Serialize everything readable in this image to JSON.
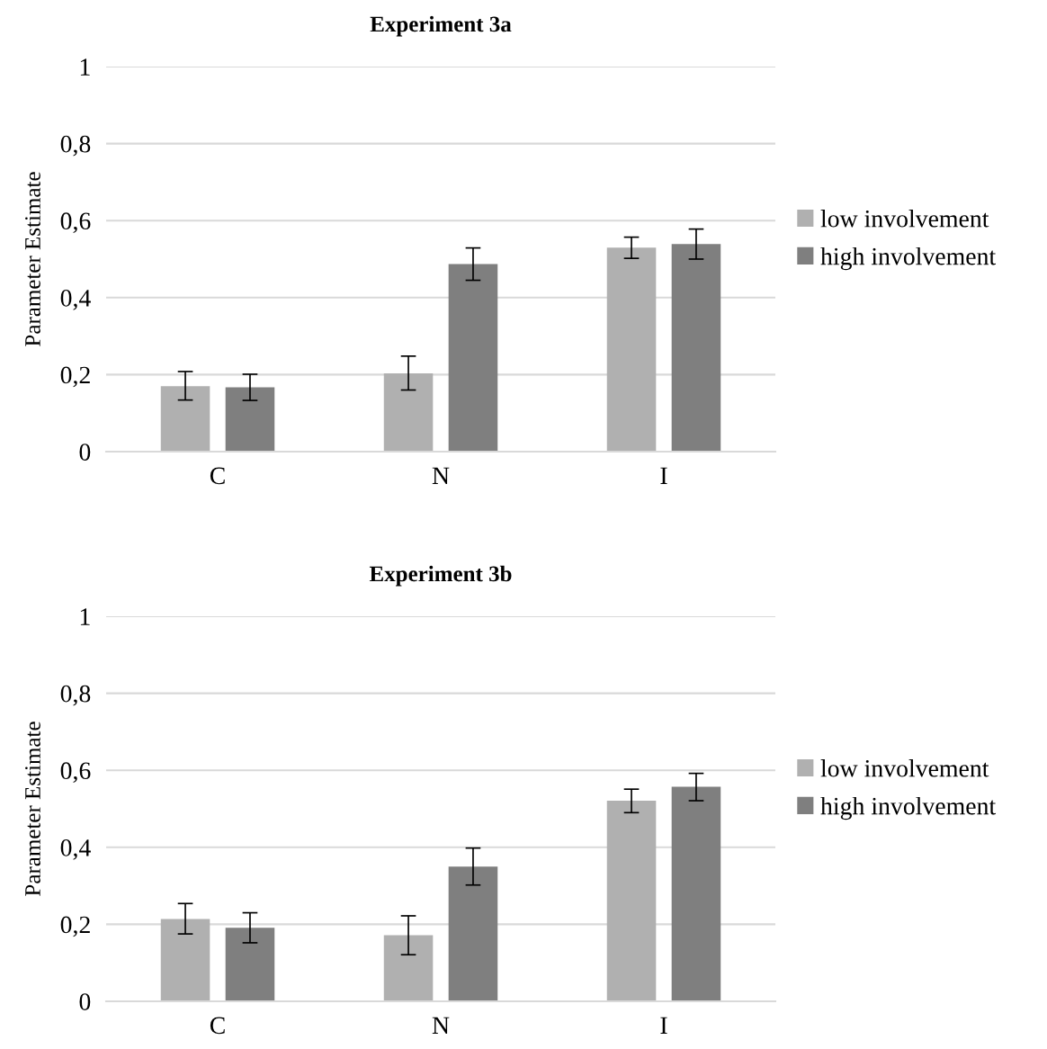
{
  "chart_data": [
    {
      "type": "bar",
      "title": "Experiment 3a",
      "ylabel": "Parameter Estimate",
      "categories": [
        "C",
        "N",
        "I"
      ],
      "series": [
        {
          "name": "low involvement",
          "color": "#b0b0b0",
          "values": [
            0.17,
            0.203,
            0.53
          ],
          "errors": [
            [
              0.134,
              0.208
            ],
            [
              0.16,
              0.248
            ],
            [
              0.502,
              0.557
            ]
          ]
        },
        {
          "name": "high involvement",
          "color": "#7f7f7f",
          "values": [
            0.167,
            0.487,
            0.539
          ],
          "errors": [
            [
              0.133,
              0.201
            ],
            [
              0.445,
              0.529
            ],
            [
              0.5,
              0.578
            ]
          ]
        }
      ],
      "ylim": [
        0,
        1
      ],
      "yticks": [
        0,
        {
          "value": 0.2,
          "label": "0,2"
        },
        {
          "value": 0.4,
          "label": "0,4"
        },
        {
          "value": 0.6,
          "label": "0,6"
        },
        {
          "value": 0.8,
          "label": "0,8"
        },
        1
      ],
      "grid": "y",
      "legend": "right"
    },
    {
      "type": "bar",
      "title": "Experiment 3b",
      "ylabel": "Parameter Estimate",
      "categories": [
        "C",
        "N",
        "I"
      ],
      "series": [
        {
          "name": "low involvement",
          "color": "#b0b0b0",
          "values": [
            0.214,
            0.172,
            0.521
          ],
          "errors": [
            [
              0.175,
              0.254
            ],
            [
              0.121,
              0.222
            ],
            [
              0.49,
              0.551
            ]
          ]
        },
        {
          "name": "high involvement",
          "color": "#7f7f7f",
          "values": [
            0.191,
            0.35,
            0.557
          ],
          "errors": [
            [
              0.152,
              0.23
            ],
            [
              0.302,
              0.398
            ],
            [
              0.521,
              0.592
            ]
          ]
        }
      ],
      "ylim": [
        0,
        1
      ],
      "yticks": [
        0,
        {
          "value": 0.2,
          "label": "0,2"
        },
        {
          "value": 0.4,
          "label": "0,4"
        },
        {
          "value": 0.6,
          "label": "0,6"
        },
        {
          "value": 0.8,
          "label": "0,8"
        },
        1
      ],
      "grid": "y",
      "legend": "right"
    }
  ]
}
